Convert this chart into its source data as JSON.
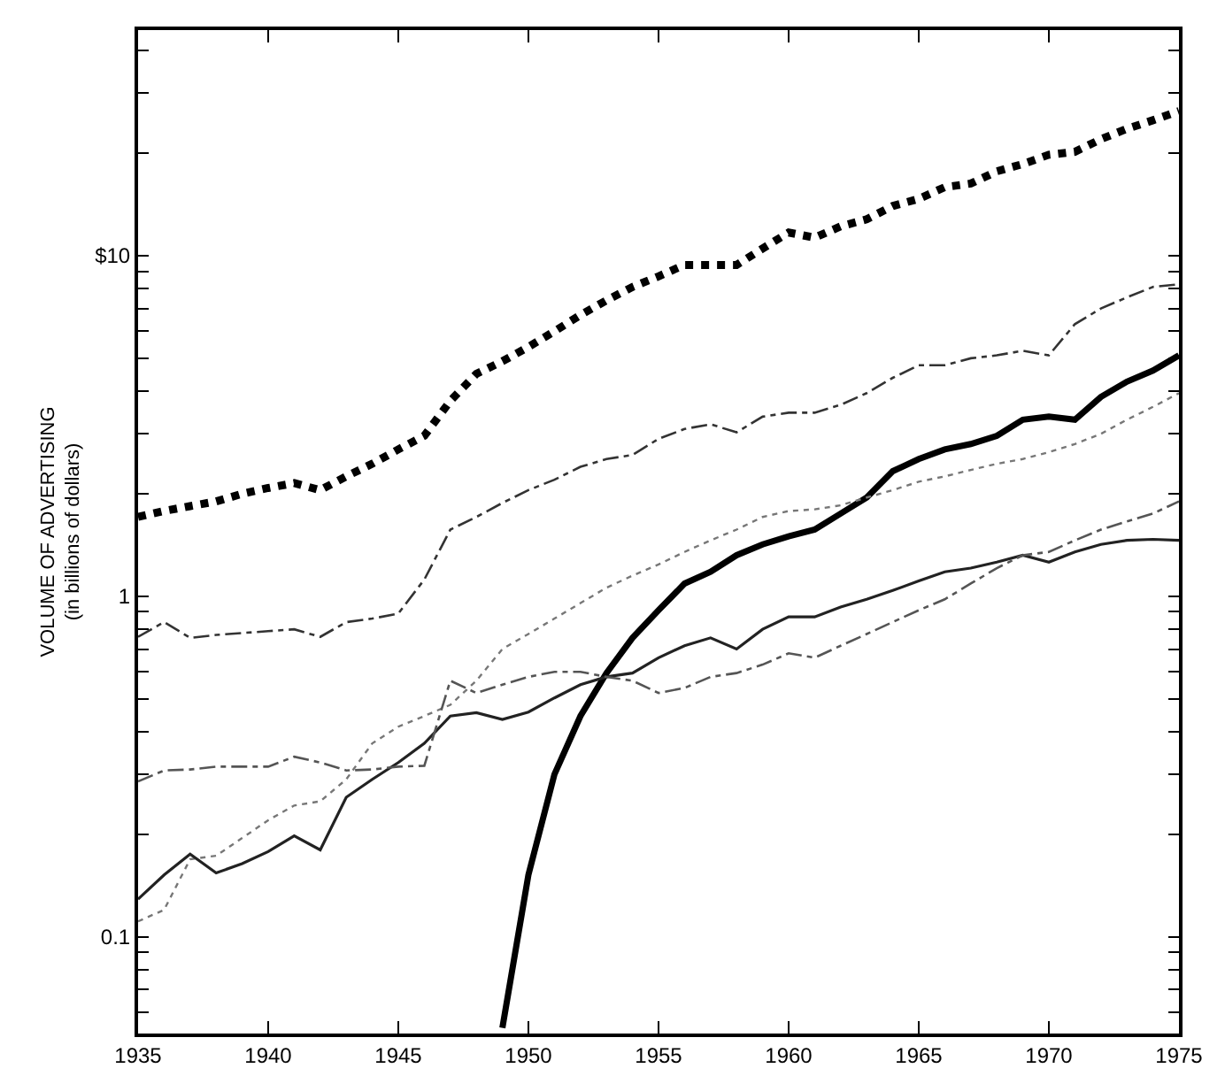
{
  "chart_data": {
    "type": "line",
    "ylabel": "VOLUME OF ADVERTISING\n(in billions of dollars)",
    "log": true,
    "grid": false,
    "marker": "none",
    "x": [
      1935,
      1936,
      1937,
      1938,
      1939,
      1940,
      1941,
      1942,
      1943,
      1944,
      1945,
      1946,
      1947,
      1948,
      1949,
      1950,
      1951,
      1952,
      1953,
      1954,
      1955,
      1956,
      1957,
      1958,
      1959,
      1960,
      1961,
      1962,
      1963,
      1964,
      1965,
      1966,
      1967,
      1968,
      1969,
      1970,
      1971,
      1972,
      1973,
      1974,
      1975
    ],
    "xlim": [
      1935,
      1975
    ],
    "xticks": [
      1935,
      1940,
      1945,
      1950,
      1955,
      1960,
      1965,
      1970,
      1975
    ],
    "ylim": [
      0.052,
      46
    ],
    "yticks": [
      {
        "value": 0.06,
        "label": null
      },
      {
        "value": 0.07,
        "label": null
      },
      {
        "value": 0.08,
        "label": null
      },
      {
        "value": 0.09,
        "label": null
      },
      0.1,
      {
        "value": 0.2,
        "label": null
      },
      {
        "value": 0.3,
        "label": null
      },
      {
        "value": 0.4,
        "label": null
      },
      {
        "value": 0.5,
        "label": null
      },
      {
        "value": 0.6,
        "label": null
      },
      {
        "value": 0.7,
        "label": null
      },
      {
        "value": 0.8,
        "label": null
      },
      {
        "value": 0.9,
        "label": null
      },
      1,
      {
        "value": 2,
        "label": null
      },
      {
        "value": 3,
        "label": null
      },
      {
        "value": 4,
        "label": null
      },
      {
        "value": 5,
        "label": null
      },
      {
        "value": 6,
        "label": null
      },
      {
        "value": 7,
        "label": null
      },
      {
        "value": 8,
        "label": null
      },
      {
        "value": 9,
        "label": null
      },
      {
        "value": 10,
        "label": "$10"
      },
      {
        "value": 20,
        "label": null
      },
      {
        "value": 30,
        "label": null
      },
      {
        "value": 40,
        "label": null
      }
    ],
    "series": [
      {
        "color": "#000000",
        "line_style": "dotted",
        "values": [
          1.71,
          1.78,
          1.84,
          1.9,
          2.0,
          2.08,
          2.15,
          2.05,
          2.25,
          2.45,
          2.7,
          2.96,
          3.75,
          4.5,
          4.9,
          5.4,
          6.0,
          6.7,
          7.4,
          8.1,
          8.7,
          9.4,
          9.4,
          9.4,
          10.5,
          11.7,
          11.3,
          12.2,
          12.8,
          14.0,
          14.7,
          15.9,
          16.3,
          17.7,
          18.6,
          19.8,
          20.2,
          22.0,
          23.6,
          25.0,
          26.6
        ]
      },
      {
        "color": "#333333",
        "line_style": "dashed",
        "values": [
          0.76,
          0.84,
          0.755,
          0.77,
          0.78,
          0.79,
          0.8,
          0.76,
          0.84,
          0.86,
          0.89,
          1.12,
          1.57,
          1.71,
          1.88,
          2.05,
          2.2,
          2.4,
          2.53,
          2.6,
          2.9,
          3.1,
          3.2,
          3.03,
          3.37,
          3.46,
          3.46,
          3.65,
          3.95,
          4.38,
          4.77,
          4.77,
          5.0,
          5.1,
          5.26,
          5.1,
          6.3,
          7.0,
          7.55,
          8.1,
          8.25
        ]
      },
      {
        "color": "#000000",
        "line_style": "solid",
        "values": [
          null,
          null,
          null,
          null,
          null,
          null,
          null,
          null,
          null,
          null,
          null,
          null,
          null,
          null,
          0.054,
          0.152,
          0.3,
          0.445,
          0.595,
          0.755,
          0.91,
          1.09,
          1.18,
          1.32,
          1.42,
          1.5,
          1.57,
          1.75,
          1.95,
          2.33,
          2.53,
          2.7,
          2.8,
          2.96,
          3.3,
          3.37,
          3.3,
          3.85,
          4.27,
          4.6,
          5.1
        ]
      },
      {
        "color": "#777777",
        "line_style": "dotted",
        "values": [
          0.111,
          0.12,
          0.169,
          0.173,
          0.195,
          0.22,
          0.243,
          0.25,
          0.29,
          0.37,
          0.414,
          0.445,
          0.48,
          0.565,
          0.7,
          0.775,
          0.86,
          0.955,
          1.06,
          1.15,
          1.24,
          1.35,
          1.46,
          1.57,
          1.71,
          1.78,
          1.8,
          1.85,
          1.95,
          2.05,
          2.17,
          2.25,
          2.35,
          2.45,
          2.53,
          2.65,
          2.8,
          3.0,
          3.3,
          3.6,
          3.95
        ]
      },
      {
        "color": "#222222",
        "line_style": "solid",
        "values": [
          0.129,
          0.152,
          0.175,
          0.154,
          0.164,
          0.178,
          0.198,
          0.18,
          0.257,
          0.29,
          0.325,
          0.37,
          0.445,
          0.455,
          0.435,
          0.457,
          0.503,
          0.55,
          0.58,
          0.595,
          0.66,
          0.716,
          0.755,
          0.7,
          0.8,
          0.87,
          0.87,
          0.93,
          0.98,
          1.04,
          1.11,
          1.18,
          1.21,
          1.26,
          1.32,
          1.26,
          1.35,
          1.42,
          1.46,
          1.47,
          1.46
        ]
      },
      {
        "color": "#555555",
        "line_style": "dashed",
        "values": [
          0.286,
          0.308,
          0.31,
          0.316,
          0.316,
          0.316,
          0.338,
          0.325,
          0.308,
          0.31,
          0.316,
          0.318,
          0.565,
          0.52,
          0.55,
          0.58,
          0.6,
          0.6,
          0.58,
          0.565,
          0.52,
          0.538,
          0.58,
          0.595,
          0.63,
          0.68,
          0.66,
          0.716,
          0.775,
          0.84,
          0.91,
          0.98,
          1.09,
          1.21,
          1.32,
          1.35,
          1.46,
          1.57,
          1.66,
          1.75,
          1.9
        ]
      }
    ]
  }
}
